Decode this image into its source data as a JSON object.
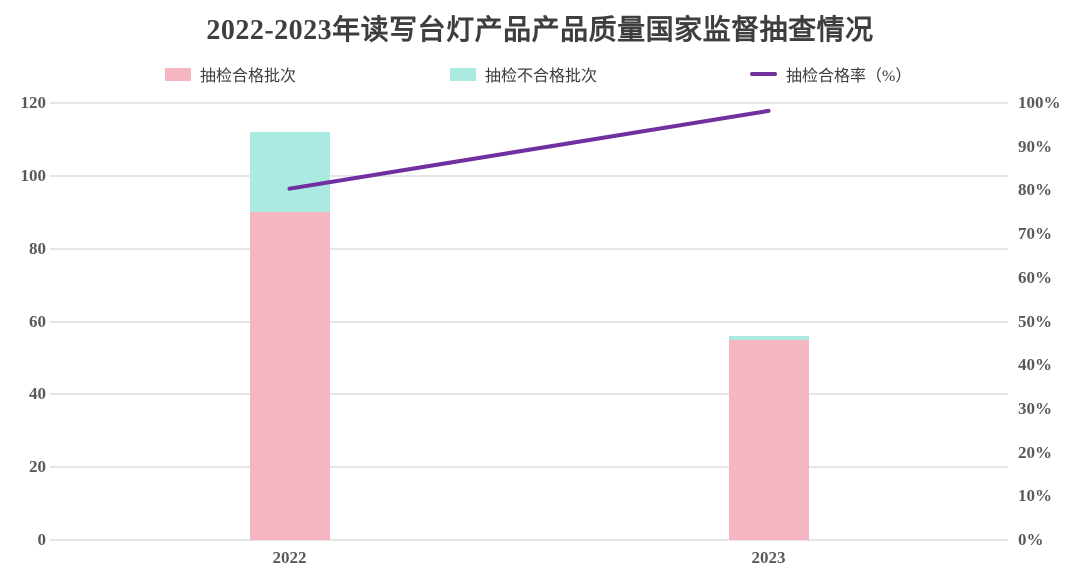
{
  "colors": {
    "bar_pass": "#f5b5c2",
    "bar_fail": "#aaeae1",
    "line": "#7030a0",
    "grid": "#e6e6e6",
    "axis_text": "#595959",
    "title_text": "#3e3e3e"
  },
  "chart_data": {
    "type": "bar",
    "subtype": "stacked-column-with-line",
    "title": "2022-2023年读写台灯产品产品质量国家监督抽查情况",
    "categories": [
      "2022",
      "2023"
    ],
    "series": [
      {
        "name": "抽检合格批次",
        "kind": "bar",
        "axis": "left",
        "color_key": "bar_pass",
        "values": [
          90,
          55
        ]
      },
      {
        "name": "抽检不合格批次",
        "kind": "bar",
        "axis": "left",
        "color_key": "bar_fail",
        "values": [
          22,
          1
        ]
      },
      {
        "name": "抽检合格率（%）",
        "kind": "line",
        "axis": "right",
        "color_key": "line",
        "values": [
          80.4,
          98.2
        ]
      }
    ],
    "left_axis": {
      "min": 0,
      "max": 120,
      "tick_labels": [
        "0",
        "20",
        "40",
        "60",
        "80",
        "100",
        "120"
      ]
    },
    "right_axis": {
      "min": 0,
      "max": 100,
      "tick_labels": [
        "0%",
        "10%",
        "20%",
        "30%",
        "40%",
        "50%",
        "60%",
        "70%",
        "80%",
        "90%",
        "100%"
      ]
    },
    "legend_position": "top",
    "grid": true
  }
}
